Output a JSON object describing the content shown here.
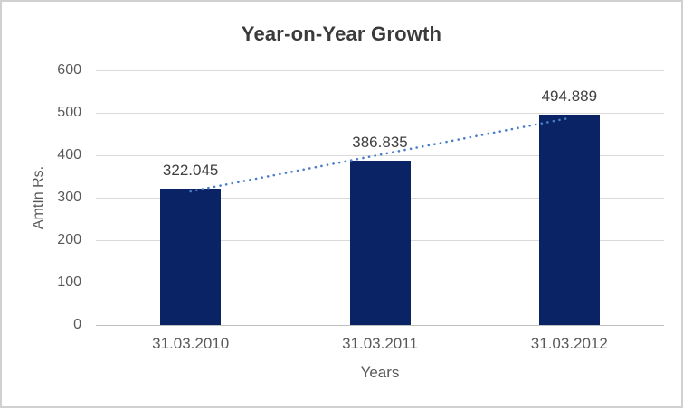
{
  "chart": {
    "background": "#ffffff",
    "border_color": "#d0d0d0"
  },
  "chart_data": {
    "type": "bar",
    "title": "Year-on-Year Growth",
    "categories": [
      "31.03.2010",
      "31.03.2011",
      "31.03.2012"
    ],
    "values": [
      322.045,
      386.835,
      494.889
    ],
    "data_labels": [
      "322.045",
      "386.835",
      "494.889"
    ],
    "xlabel": "Years",
    "ylabel": "AmtIn Rs.",
    "ylim": [
      0,
      600
    ],
    "yticks": [
      0,
      100,
      200,
      300,
      400,
      500,
      600
    ],
    "grid": true,
    "legend": "none",
    "trendline": {
      "type": "linear",
      "style": "round-dot",
      "color": "#4a7dc9"
    },
    "colors": {
      "bar": "#0a2365",
      "gridline": "#d9d9d9",
      "axis_line": "#bfbfbf",
      "title_text": "#3b3b3b",
      "tick_text": "#595959",
      "axis_title_text": "#595959",
      "data_label_text": "#404040"
    }
  }
}
